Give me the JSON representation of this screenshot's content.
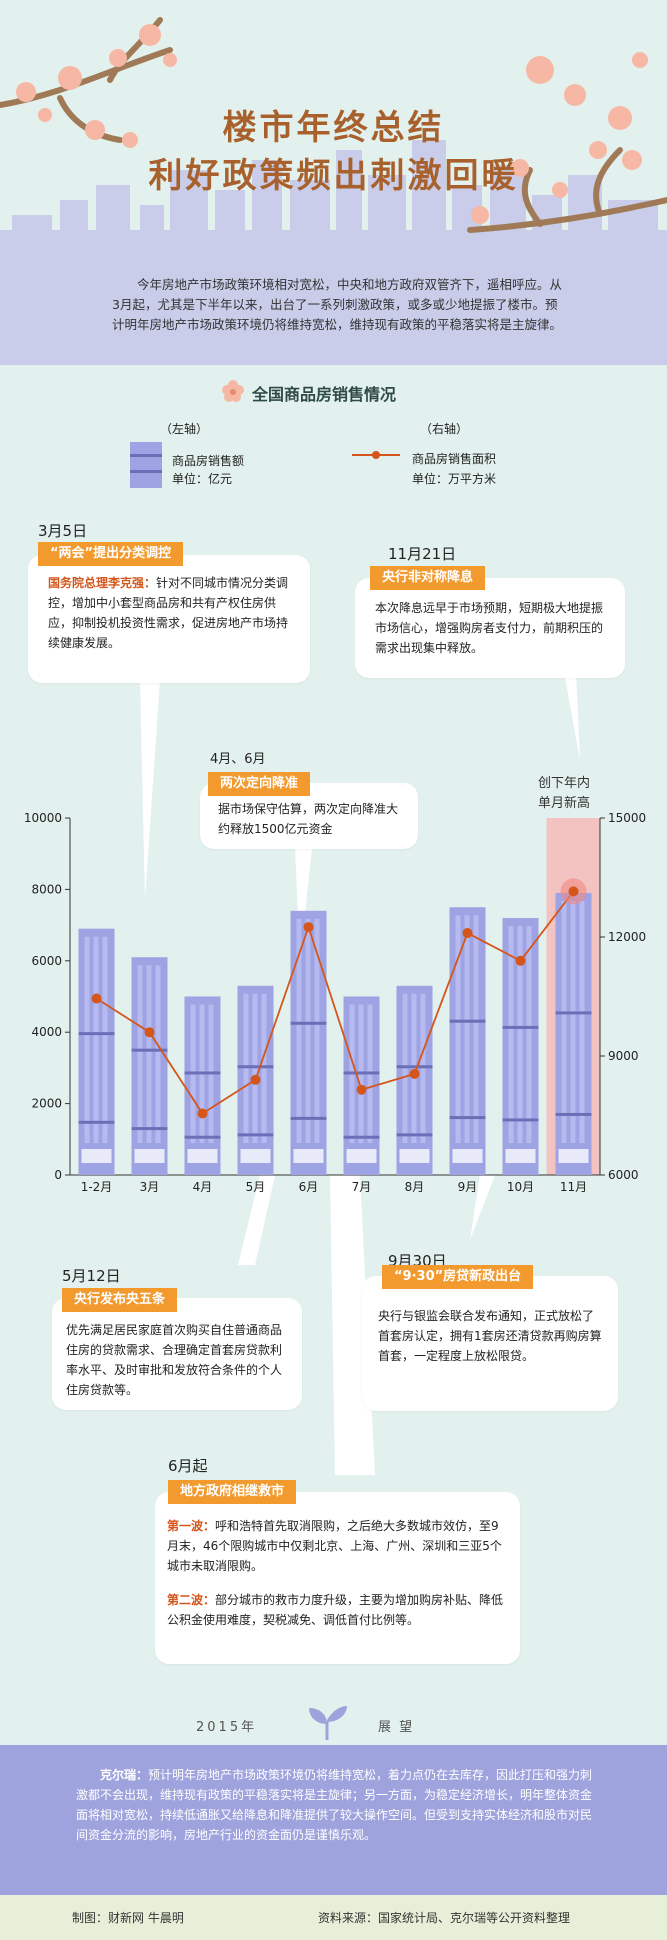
{
  "title": {
    "line1": "楼市年终总结",
    "line2": "利好政策频出刺激回暖"
  },
  "intro": "今年房地产市场政策环境相对宽松，中央和地方政府双管齐下，遥相呼应。从3月起，尤其是下半年以来，出台了一系列刺激政策，或多或少地提振了楼市。预计明年房地产市场政策环境仍将维持宽松，维持现有政策的平稳落实将是主旋律。",
  "section_title": "全国商品房销售情况",
  "legend": {
    "left_axis": "（左轴）",
    "left_name": "商品房销售额",
    "left_unit": "单位：亿元",
    "right_axis": "（右轴）",
    "right_name": "商品房销售面积",
    "right_unit": "单位：万平方米"
  },
  "events": {
    "mar5": {
      "date": "3月5日",
      "tag": "“两会”提出分类调控",
      "speaker": "国务院总理李克强：",
      "text": "针对不同城市情况分类调控，增加中小套型商品房和共有产权住房供应，抑制投机投资性需求，促进房地产市场持续健康发展。"
    },
    "nov21": {
      "date": "11月21日",
      "tag": "央行非对称降息",
      "text": "本次降息远早于市场预期，短期极大地提振市场信心，增强购房者支付力，前期积压的需求出现集中释放。"
    },
    "apr_jun": {
      "date": "4月、6月",
      "tag": "两次定向降准",
      "text": "据市场保守估算，两次定向降准大约释放1500亿元资金"
    },
    "may12": {
      "date": "5月12日",
      "tag": "央行发布央五条",
      "text": "优先满足居民家庭首次购买自住普通商品住房的贷款需求、合理确定首套房贷款利率水平、及时审批和发放符合条件的个人住房贷款等。"
    },
    "sep30": {
      "date": "9月30日",
      "tag": "“9·30”房贷新政出台",
      "text": "央行与银监会联合发布通知，正式放松了首套房认定，拥有1套房还清贷款再购房算首套，一定程度上放松限贷。"
    },
    "jun": {
      "date": "6月起",
      "tag": "地方政府相继救市",
      "wave1_label": "第一波：",
      "wave1": "呼和浩特首先取消限购，之后绝大多数城市效仿，至9月末，46个限购城市中仅剩北京、上海、广州、深圳和三亚5个城市未取消限购。",
      "wave2_label": "第二波：",
      "wave2": "部分城市的救市力度升级，主要为增加购房补贴、降低公积金使用难度，契税减免、调低首付比例等。"
    }
  },
  "record_note": {
    "line1": "创下年内",
    "line2": "单月新高"
  },
  "chart_data": {
    "type": "bar",
    "categories": [
      "1-2月",
      "3月",
      "4月",
      "5月",
      "6月",
      "7月",
      "8月",
      "9月",
      "10月",
      "11月"
    ],
    "series": [
      {
        "name": "商品房销售额",
        "axis": "left",
        "values": [
          6900,
          6100,
          5000,
          5300,
          7400,
          5000,
          5300,
          7500,
          7200,
          7900
        ]
      },
      {
        "name": "商品房销售面积",
        "axis": "right",
        "type": "line",
        "values": [
          10450,
          9600,
          7550,
          8400,
          12250,
          8150,
          8550,
          12100,
          11400,
          13150
        ]
      }
    ],
    "y_left": {
      "min": 0,
      "max": 10000,
      "ticks": [
        "0",
        "2000",
        "4000",
        "6000",
        "8000",
        "10000"
      ]
    },
    "y_right": {
      "min": 6000,
      "max": 15000,
      "ticks": [
        "6000",
        "9000",
        "12000",
        "15000"
      ]
    },
    "highlight_category": "11月"
  },
  "outlook": {
    "year": "2015年",
    "label": "展 望"
  },
  "footer": {
    "speaker": "克尔瑞：",
    "text": "预计明年房地产市场政策环境仍将维持宽松，着力点仍在去库存，因此打压和强力刺激都不会出现，维持现有政策的平稳落实将是主旋律；另一方面，为稳定经济增长，明年整体资金面将相对宽松，持续低通胀又给降息和降准提供了较大操作空间。但受到支持实体经济和股市对民间资金分流的影响，房地产行业的资金面仍是谨慎乐观。"
  },
  "credits": {
    "left": "制图：财新网 牛晨明",
    "right": "资料来源：国家统计局、克尔瑞等公开资料整理"
  },
  "colors": {
    "bar": "#9ea3e3",
    "line": "#d4561b",
    "tag": "#f39a2f",
    "title": "#a8612d",
    "highlight": "#f5b8b4"
  }
}
